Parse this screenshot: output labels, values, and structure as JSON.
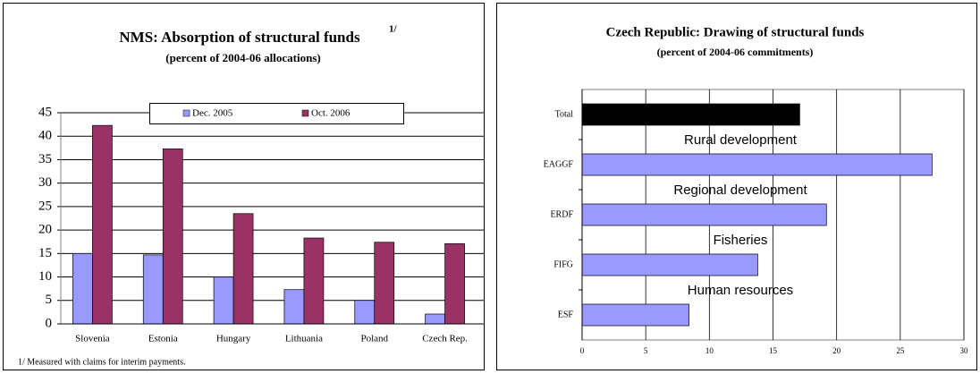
{
  "chart_data": [
    {
      "type": "bar",
      "title": "NMS: Absorption of structural funds",
      "title_note": "1/",
      "subtitle": "(percent of  2004-06 allocations)",
      "categories": [
        "Slovenia",
        "Estonia",
        "Hungary",
        "Lithuania",
        "Poland",
        "Czech Rep."
      ],
      "series": [
        {
          "name": "Dec. 2005",
          "color": "#9999ff",
          "values": [
            15,
            14.7,
            10,
            7.3,
            5,
            2.1
          ]
        },
        {
          "name": "Oct. 2006",
          "color": "#993366",
          "values": [
            42.3,
            37.3,
            23.5,
            18.3,
            17.4,
            17.1
          ]
        }
      ],
      "ylim": [
        0,
        45
      ],
      "yticks": [
        0,
        5,
        10,
        15,
        20,
        25,
        30,
        35,
        40,
        45
      ],
      "grid": true,
      "legend": "top",
      "note": "1/ Measured with claims for interim payments."
    },
    {
      "type": "hbar",
      "title": "Czech Republic: Drawing of structural funds",
      "subtitle": "(percent of 2004-06 commitments)",
      "categories": [
        "Total",
        "EAGGF",
        "ERDF",
        "FIFG",
        "ESF"
      ],
      "values": [
        17.1,
        27.5,
        19.2,
        13.8,
        8.4
      ],
      "colors": [
        "#000000",
        "#9999ff",
        "#9999ff",
        "#9999ff",
        "#9999ff"
      ],
      "annotations": [
        null,
        "Rural development",
        "Regional development",
        "Fisheries",
        "Human resources"
      ],
      "xlim": [
        0,
        30
      ],
      "xticks": [
        0,
        5,
        10,
        15,
        20,
        25,
        30
      ],
      "grid": true
    }
  ]
}
